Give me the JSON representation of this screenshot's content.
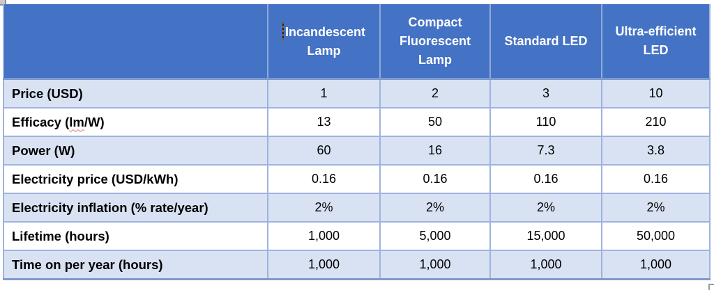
{
  "table": {
    "header": {
      "corner_label": "",
      "cols": [
        "Incandescent Lamp",
        "Compact Fluorescent Lamp",
        "Standard LED",
        "Ultra-efficient LED"
      ]
    },
    "rows": [
      {
        "label": {
          "pre": "Price (USD)",
          "squiggle": "",
          "post": ""
        },
        "values": [
          "1",
          "2",
          "3",
          "10"
        ]
      },
      {
        "label": {
          "pre": "Efficacy (",
          "squiggle": "lm",
          "post": "/W)"
        },
        "values": [
          "13",
          "50",
          "110",
          "210"
        ]
      },
      {
        "label": {
          "pre": "Power (W)",
          "squiggle": "",
          "post": ""
        },
        "values": [
          "60",
          "16",
          "7.3",
          "3.8"
        ]
      },
      {
        "label": {
          "pre": "Electricity price (USD/kWh)",
          "squiggle": "",
          "post": ""
        },
        "values": [
          "0.16",
          "0.16",
          "0.16",
          "0.16"
        ]
      },
      {
        "label": {
          "pre": "Electricity inflation (% rate/year)",
          "squiggle": "",
          "post": ""
        },
        "values": [
          "2%",
          "2%",
          "2%",
          "2%"
        ]
      },
      {
        "label": {
          "pre": "Lifetime (hours)",
          "squiggle": "",
          "post": ""
        },
        "values": [
          "1,000",
          "5,000",
          "15,000",
          "50,000"
        ]
      },
      {
        "label": {
          "pre": "Time on per year (hours)",
          "squiggle": "",
          "post": ""
        },
        "values": [
          "1,000",
          "1,000",
          "1,000",
          "1,000"
        ]
      }
    ],
    "colors": {
      "header_fill": "#4472C4",
      "header_text": "#FFFFFF",
      "banded_row_fill": "#D9E2F3",
      "plain_row_fill": "#FFFFFF",
      "border": "#8FAADC",
      "outer_bottom_border": "#7E99CB",
      "spellcheck_squiggle": "#E8766C"
    },
    "icons": {
      "caret": "text-caret",
      "top_left": "table-move-handle",
      "bottom_right": "table-resize-handle"
    }
  }
}
